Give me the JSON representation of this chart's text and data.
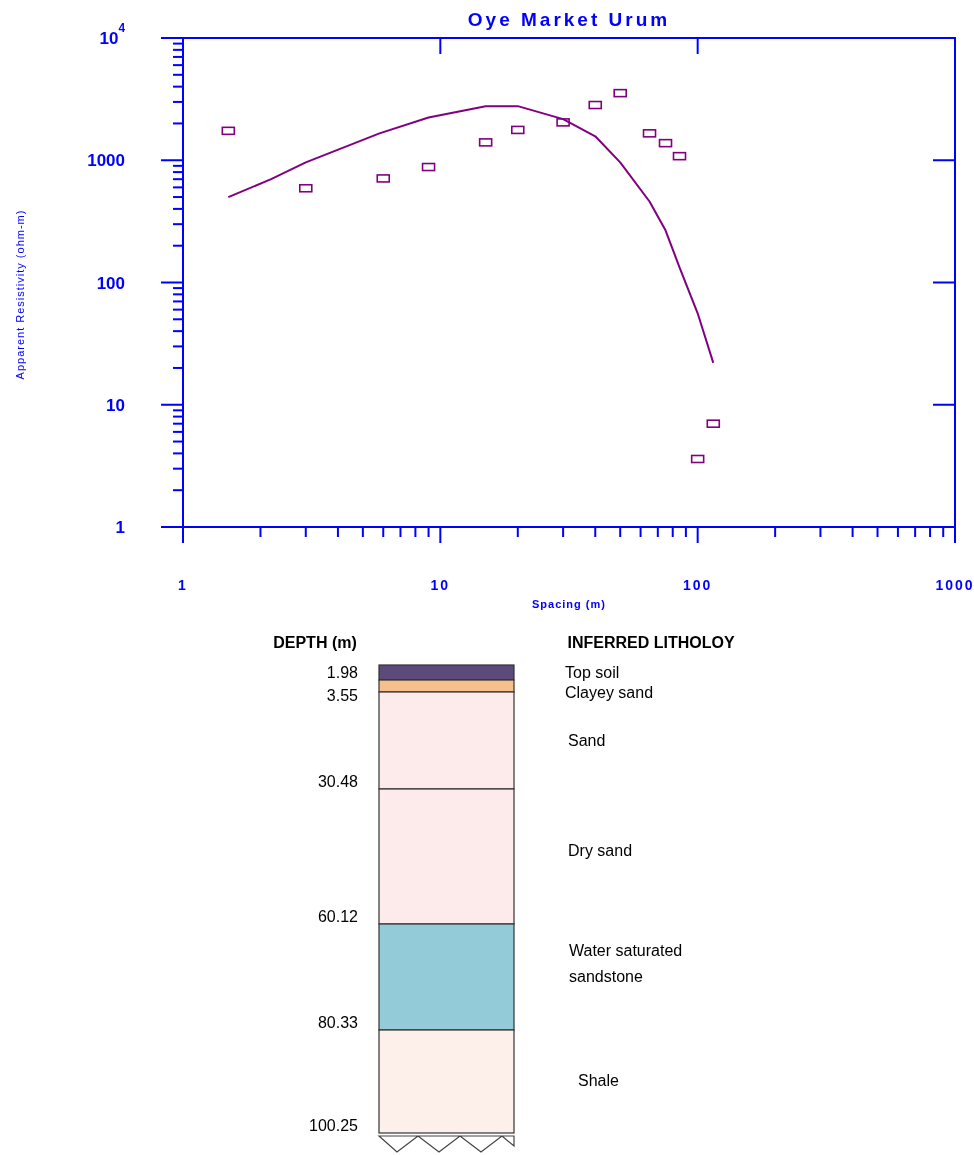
{
  "chart_data": [
    {
      "type": "scatter",
      "title": "Oye Market Urum",
      "xlabel": "Spacing (m)",
      "ylabel": "Apparent Resistivity (ohm-m)",
      "log": "xy",
      "grid": false,
      "marker": "square",
      "xlim": [
        1,
        1000
      ],
      "ylim": [
        1,
        10000
      ],
      "xticks": [
        1,
        {
          "value": 2,
          "label": null
        },
        {
          "value": 3,
          "label": null
        },
        {
          "value": 4,
          "label": null
        },
        {
          "value": 5,
          "label": null
        },
        {
          "value": 6,
          "label": null
        },
        {
          "value": 7,
          "label": null
        },
        {
          "value": 8,
          "label": null
        },
        {
          "value": 9,
          "label": null
        },
        10,
        {
          "value": 20,
          "label": null
        },
        {
          "value": 30,
          "label": null
        },
        {
          "value": 40,
          "label": null
        },
        {
          "value": 50,
          "label": null
        },
        {
          "value": 60,
          "label": null
        },
        {
          "value": 70,
          "label": null
        },
        {
          "value": 80,
          "label": null
        },
        {
          "value": 90,
          "label": null
        },
        100,
        {
          "value": 200,
          "label": null
        },
        {
          "value": 300,
          "label": null
        },
        {
          "value": 400,
          "label": null
        },
        {
          "value": 500,
          "label": null
        },
        {
          "value": 600,
          "label": null
        },
        {
          "value": 700,
          "label": null
        },
        {
          "value": 800,
          "label": null
        },
        {
          "value": 900,
          "label": null
        },
        1000
      ],
      "yticks": [
        1,
        {
          "value": 2,
          "label": null
        },
        {
          "value": 3,
          "label": null
        },
        {
          "value": 4,
          "label": null
        },
        {
          "value": 5,
          "label": null
        },
        {
          "value": 6,
          "label": null
        },
        {
          "value": 7,
          "label": null
        },
        {
          "value": 8,
          "label": null
        },
        {
          "value": 9,
          "label": null
        },
        10,
        {
          "value": 20,
          "label": null
        },
        {
          "value": 30,
          "label": null
        },
        {
          "value": 40,
          "label": null
        },
        {
          "value": 50,
          "label": null
        },
        {
          "value": 60,
          "label": null
        },
        {
          "value": 70,
          "label": null
        },
        {
          "value": 80,
          "label": null
        },
        {
          "value": 90,
          "label": null
        },
        100,
        {
          "value": 200,
          "label": null
        },
        {
          "value": 300,
          "label": null
        },
        {
          "value": 400,
          "label": null
        },
        {
          "value": 500,
          "label": null
        },
        {
          "value": 600,
          "label": null
        },
        {
          "value": 700,
          "label": null
        },
        {
          "value": 800,
          "label": null
        },
        {
          "value": 900,
          "label": null
        },
        1000,
        {
          "value": 2000,
          "label": null
        },
        {
          "value": 3000,
          "label": null
        },
        {
          "value": 4000,
          "label": null
        },
        {
          "value": 5000,
          "label": null
        },
        {
          "value": 6000,
          "label": null
        },
        {
          "value": 7000,
          "label": null
        },
        {
          "value": 8000,
          "label": null
        },
        {
          "value": 9000,
          "label": null
        },
        {
          "value": 10000,
          "label": "10$^{4}$"
        }
      ],
      "series": [
        {
          "type": "scatter",
          "color": "#800080",
          "x": [
            1.5,
            3,
            6,
            9,
            15,
            20,
            30,
            40,
            50,
            65,
            75,
            85,
            100,
            115
          ],
          "values": [
            1740,
            590,
            710,
            880,
            1400,
            1770,
            2040,
            2830,
            3540,
            1660,
            1380,
            1080,
            3.6,
            7.0
          ]
        },
        {
          "type": "line",
          "color": "#800080",
          "line_style": "solid",
          "marker": "none",
          "x": [
            1.5,
            2.2,
            3,
            5.8,
            9,
            15,
            20,
            30,
            40,
            50,
            65,
            75,
            85,
            100,
            115
          ],
          "values": [
            500,
            700,
            960,
            1660,
            2240,
            2770,
            2770,
            2170,
            1570,
            960,
            460,
            267,
            133,
            56,
            22
          ]
        }
      ]
    },
    {
      "type": "other",
      "ylabel": "DEPTH (m)",
      "title": "INFERRED LITHOLOY",
      "categories": [
        "Top soil",
        "Clayey sand",
        "Sand",
        "Dry sand",
        "Water saturated sandstone",
        "Shale"
      ],
      "values": [
        1.98,
        3.55,
        30.48,
        60.12,
        80.33,
        100.25
      ],
      "colors": [
        "#5b4a7a",
        "#f5c08c",
        "#fdeaea",
        "#fdeaea",
        "#93cbd8",
        "#fdefea"
      ],
      "data_labels": true
    }
  ]
}
